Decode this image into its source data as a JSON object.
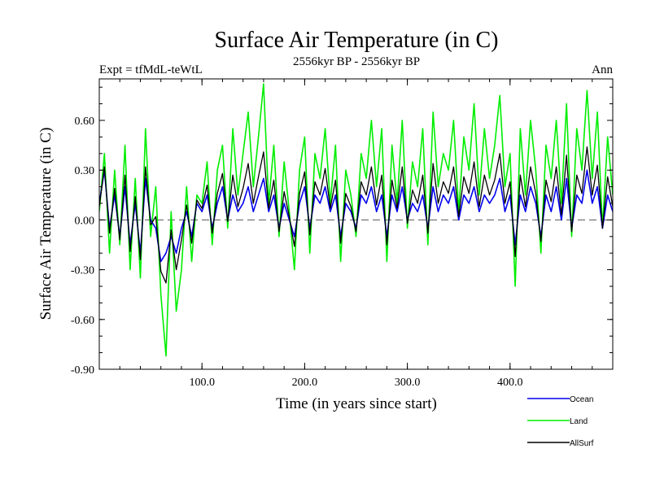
{
  "chart_data": {
    "type": "line",
    "title": "Surface Air Temperature (in C)",
    "subtitle": "2556kyr BP - 2556kyr BP",
    "left_label": "Expt = tfMdL-teWtL",
    "right_label": "Ann",
    "xlabel": "Time (in years since start)",
    "ylabel": "Surface Air Temperature (in C)",
    "xlim": [
      0,
      500
    ],
    "ylim": [
      -0.9,
      0.85
    ],
    "x_ticks": [
      100,
      200,
      300,
      400
    ],
    "x_tick_labels": [
      "100.0",
      "200.0",
      "300.0",
      "400.0"
    ],
    "y_ticks": [
      -0.9,
      -0.6,
      -0.3,
      0.0,
      0.3,
      0.6
    ],
    "y_tick_labels": [
      "-0.90",
      "-0.60",
      "-0.30",
      "0.00",
      "0.30",
      "0.60"
    ],
    "zero_line": true,
    "legend_position": "bottom-right",
    "series": [
      {
        "name": "Land",
        "color": "#00ee00",
        "x": [
          0,
          5,
          10,
          15,
          20,
          25,
          30,
          35,
          40,
          45,
          50,
          55,
          60,
          65,
          70,
          75,
          80,
          85,
          90,
          95,
          100,
          105,
          110,
          115,
          120,
          125,
          130,
          135,
          140,
          145,
          150,
          155,
          160,
          165,
          170,
          175,
          180,
          185,
          190,
          195,
          200,
          205,
          210,
          215,
          220,
          225,
          230,
          235,
          240,
          245,
          250,
          255,
          260,
          265,
          270,
          275,
          280,
          285,
          290,
          295,
          300,
          305,
          310,
          315,
          320,
          325,
          330,
          335,
          340,
          345,
          350,
          355,
          360,
          365,
          370,
          375,
          380,
          385,
          390,
          395,
          400,
          405,
          410,
          415,
          420,
          425,
          430,
          435,
          440,
          445,
          450,
          455,
          460,
          465,
          470,
          475,
          480,
          485,
          490,
          495,
          500
        ],
        "values": [
          0.05,
          0.4,
          -0.2,
          0.3,
          -0.15,
          0.45,
          -0.3,
          0.25,
          -0.35,
          0.55,
          -0.1,
          0.2,
          -0.45,
          -0.82,
          0.05,
          -0.55,
          -0.3,
          0.2,
          -0.25,
          0.15,
          0.1,
          0.35,
          -0.15,
          0.3,
          0.45,
          -0.05,
          0.55,
          0.15,
          0.4,
          0.65,
          0.2,
          0.5,
          0.82,
          0.1,
          0.45,
          -0.1,
          0.35,
          0.05,
          -0.3,
          0.3,
          0.5,
          -0.2,
          0.4,
          0.25,
          0.55,
          0.1,
          0.45,
          -0.25,
          0.3,
          0.15,
          -0.1,
          0.4,
          0.25,
          0.6,
          0.2,
          0.55,
          -0.25,
          0.45,
          0.1,
          0.6,
          -0.05,
          0.35,
          0.2,
          0.55,
          -0.15,
          0.65,
          0.2,
          0.4,
          0.3,
          0.6,
          0.05,
          0.5,
          0.3,
          0.7,
          0.15,
          0.55,
          0.25,
          0.45,
          0.75,
          0.2,
          0.4,
          -0.4,
          0.55,
          0.15,
          0.6,
          0.3,
          -0.2,
          0.45,
          0.25,
          0.6,
          0.1,
          0.7,
          -0.1,
          0.55,
          0.3,
          0.78,
          0.25,
          0.65,
          -0.05,
          0.5,
          0.15
        ]
      },
      {
        "name": "Ocean",
        "color": "#0000ee",
        "x": [
          0,
          5,
          10,
          15,
          20,
          25,
          30,
          35,
          40,
          45,
          50,
          55,
          60,
          65,
          70,
          75,
          80,
          85,
          90,
          95,
          100,
          105,
          110,
          115,
          120,
          125,
          130,
          135,
          140,
          145,
          150,
          155,
          160,
          165,
          170,
          175,
          180,
          185,
          190,
          195,
          200,
          205,
          210,
          215,
          220,
          225,
          230,
          235,
          240,
          245,
          250,
          255,
          260,
          265,
          270,
          275,
          280,
          285,
          290,
          295,
          300,
          305,
          310,
          315,
          320,
          325,
          330,
          335,
          340,
          345,
          350,
          355,
          360,
          365,
          370,
          375,
          380,
          385,
          390,
          395,
          400,
          405,
          410,
          415,
          420,
          425,
          430,
          435,
          440,
          445,
          450,
          455,
          460,
          465,
          470,
          475,
          480,
          485,
          490,
          495,
          500
        ],
        "values": [
          0.1,
          0.3,
          -0.05,
          0.15,
          -0.1,
          0.2,
          -0.15,
          0.1,
          -0.2,
          0.25,
          0.0,
          -0.05,
          -0.25,
          -0.2,
          -0.1,
          -0.2,
          -0.05,
          0.05,
          -0.1,
          0.1,
          0.05,
          0.15,
          -0.05,
          0.1,
          0.2,
          0.0,
          0.15,
          0.05,
          0.1,
          0.2,
          0.05,
          0.15,
          0.25,
          0.05,
          0.15,
          -0.05,
          0.1,
          0.0,
          -0.1,
          0.1,
          0.2,
          -0.05,
          0.15,
          0.1,
          0.2,
          0.05,
          0.15,
          -0.1,
          0.1,
          0.05,
          -0.05,
          0.15,
          0.1,
          0.2,
          0.05,
          0.15,
          -0.1,
          0.15,
          0.05,
          0.2,
          0.0,
          0.1,
          0.05,
          0.15,
          -0.05,
          0.2,
          0.05,
          0.15,
          0.1,
          0.2,
          0.0,
          0.15,
          0.1,
          0.2,
          0.05,
          0.15,
          0.1,
          0.15,
          0.25,
          0.05,
          0.15,
          -0.15,
          0.15,
          0.05,
          0.2,
          0.1,
          -0.1,
          0.15,
          0.05,
          0.2,
          0.0,
          0.25,
          -0.05,
          0.15,
          0.1,
          0.3,
          0.1,
          0.2,
          -0.05,
          0.15,
          0.05
        ]
      },
      {
        "name": "AllSurf",
        "color": "#000000",
        "x": [
          0,
          5,
          10,
          15,
          20,
          25,
          30,
          35,
          40,
          45,
          50,
          55,
          60,
          65,
          70,
          75,
          80,
          85,
          90,
          95,
          100,
          105,
          110,
          115,
          120,
          125,
          130,
          135,
          140,
          145,
          150,
          155,
          160,
          165,
          170,
          175,
          180,
          185,
          190,
          195,
          200,
          205,
          210,
          215,
          220,
          225,
          230,
          235,
          240,
          245,
          250,
          255,
          260,
          265,
          270,
          275,
          280,
          285,
          290,
          295,
          300,
          305,
          310,
          315,
          320,
          325,
          330,
          335,
          340,
          345,
          350,
          355,
          360,
          365,
          370,
          375,
          380,
          385,
          390,
          395,
          400,
          405,
          410,
          415,
          420,
          425,
          430,
          435,
          440,
          445,
          450,
          455,
          460,
          465,
          470,
          475,
          480,
          485,
          490,
          495,
          500
        ],
        "values": [
          0.08,
          0.32,
          -0.08,
          0.19,
          -0.12,
          0.27,
          -0.19,
          0.14,
          -0.24,
          0.32,
          -0.03,
          0.02,
          -0.31,
          -0.38,
          -0.06,
          -0.3,
          -0.12,
          0.09,
          -0.14,
          0.12,
          0.07,
          0.21,
          -0.08,
          0.16,
          0.28,
          -0.01,
          0.27,
          0.08,
          0.19,
          0.34,
          0.1,
          0.26,
          0.41,
          0.07,
          0.24,
          -0.07,
          0.17,
          0.02,
          -0.16,
          0.16,
          0.29,
          -0.09,
          0.23,
          0.15,
          0.31,
          0.07,
          0.24,
          -0.14,
          0.16,
          0.08,
          -0.07,
          0.23,
          0.15,
          0.32,
          0.09,
          0.27,
          -0.15,
          0.24,
          0.07,
          0.32,
          -0.02,
          0.18,
          0.1,
          0.27,
          -0.08,
          0.34,
          0.1,
          0.23,
          0.16,
          0.32,
          0.02,
          0.26,
          0.16,
          0.35,
          0.08,
          0.27,
          0.15,
          0.24,
          0.4,
          0.1,
          0.23,
          -0.22,
          0.27,
          0.08,
          0.32,
          0.16,
          -0.13,
          0.24,
          0.11,
          0.32,
          0.03,
          0.39,
          -0.07,
          0.27,
          0.16,
          0.44,
          0.15,
          0.33,
          -0.05,
          0.26,
          0.08
        ]
      }
    ]
  }
}
